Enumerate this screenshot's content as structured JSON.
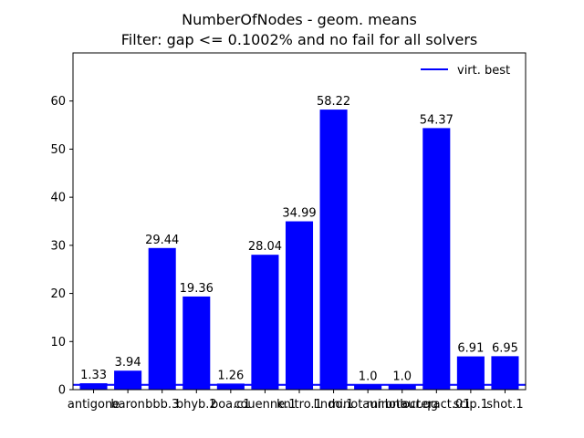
{
  "chart_data": {
    "type": "bar",
    "title": "NumberOfNodes - geom. means",
    "subtitle": "Filter: gap <= 0.1002% and no fail for all solvers",
    "xlabel": "",
    "ylabel": "",
    "categories": [
      "antigone",
      "baron",
      "bbb.3",
      "bhyb.2",
      "boa.c1",
      "couenne.1",
      "knitro.1",
      "lindo.1",
      "minotaur.bnb",
      "minotaur.qg",
      "octeract.01",
      "scip.1",
      "shot.1"
    ],
    "series": [
      {
        "values": [
          1.33,
          3.94,
          29.44,
          19.36,
          1.26,
          28.04,
          34.99,
          58.22,
          1.0,
          1.0,
          54.37,
          6.91,
          6.95
        ],
        "labels": [
          "1.33",
          "3.94",
          "29.44",
          "19.36",
          "1.26",
          "28.04",
          "34.99",
          "58.22",
          "1.0",
          "1.0",
          "54.37",
          "6.91",
          "6.95"
        ],
        "color": "#0000ff"
      }
    ],
    "reference_line": {
      "name": "virt. best",
      "value": 1.0,
      "color": "#0000ff"
    },
    "ylim": [
      0,
      70
    ],
    "yticks": [
      0,
      10,
      20,
      30,
      40,
      50,
      60
    ],
    "grid": false,
    "legend_placement": "top-right"
  }
}
